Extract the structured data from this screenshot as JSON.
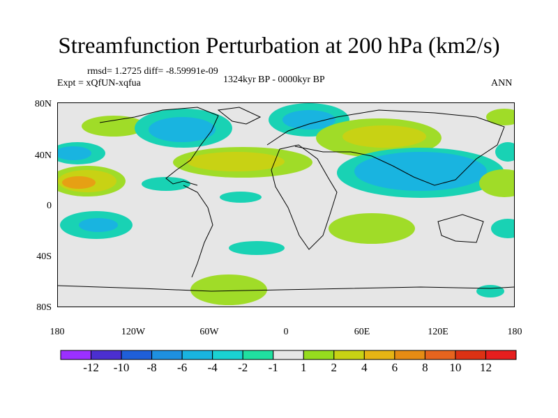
{
  "title": "Streamfunction Perturbation at 200 hPa (km2/s)",
  "stats": "rmsd= 1.2725 diff= -8.59991e-09",
  "experiment": "Expt = xQfUN-xqfua",
  "period": "1324kyr BP - 0000kyr BP",
  "season": "ANN",
  "lat_ticks": [
    "80N",
    "40N",
    "0",
    "40S",
    "80S"
  ],
  "lon_ticks": [
    "180",
    "120W",
    "60W",
    "0",
    "60E",
    "120E",
    "180"
  ],
  "colorbar": {
    "labels": [
      "-12",
      "-10",
      "-8",
      "-6",
      "-4",
      "-2",
      "-1",
      "1",
      "2",
      "4",
      "6",
      "8",
      "10",
      "12"
    ],
    "colors": [
      "#9b30ff",
      "#4b2fd0",
      "#1f5fd8",
      "#1e90e0",
      "#19b4e0",
      "#1ad2d2",
      "#20e0a0",
      "#e6e6e6",
      "#96dc1e",
      "#c8d214",
      "#e6b414",
      "#e68c14",
      "#e6641e",
      "#dc3214",
      "#e61e1e"
    ]
  },
  "colors": {
    "ocean_bg": "#e6e6e6",
    "green": "#a0dc28",
    "yellow": "#c8d214",
    "orange": "#e6a014",
    "teal": "#19d2b4",
    "cyan": "#19b4e0",
    "blue": "#1e96dc"
  }
}
